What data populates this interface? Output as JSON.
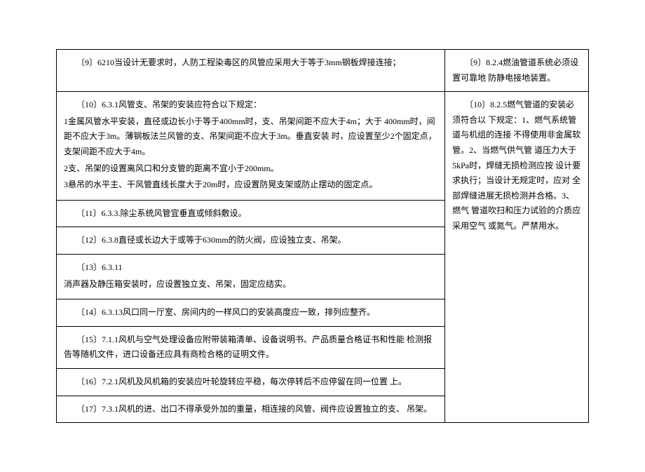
{
  "rows": {
    "r1_left": "〔9〕6210当设计无要求时，人防工程染毒区的风管应采用大于等于3mm钢板焊接连接；",
    "r1_right": "〔9〕8.2.4燃油管道系统必须设置可靠地 防静电接地装置。",
    "r2_left_p1": "〔10〕6.3.1风管支、吊架的安装应符合以下规定：",
    "r2_left_p2": " 1金属风管水平安装，直径或边长小于等于400mm时，支、吊架间距不应大于4m；大于 400mm时，间距不应大于3m。薄钢板法兰风管的支、吊架间距不应大于3m。垂直安装 时，应设置至少2个固定点，支架间距不应大于4m。",
    "r2_left_p3": "2支、吊架的设置离风口和分支管的距离不宜小于200mm。",
    "r2_left_p4": "3悬吊的水平主、干风管直线长度大于20m时，应设置防晃支架或防止摆动的固定点。",
    "r2_right": "〔10〕8.2.5燃气管道的安装必须符合以 下规定：1、燃气系统管道与机组的连接 不得使用非金属软管。2、当燃气供气管 道压力大于5kPa时，焊缝无损检测应按 设计要求执行；当设计无规定时，应对 全部焊缝进展无损检测并合格。3、燃气 管道吹扫和压力试验的介质应采用空气 或氮气。严禁用水。",
    "r3_left": "〔11〕6.3.3.除尘系统风管宜垂直或倾斜敷设。",
    "r4_left": "〔12〕6.3.8直径或长边大于或等于630mm的防火阀，应设独立支、吊架。",
    "r5_left_p1": "〔13〕6.3.11",
    "r5_left_p2": "消声器及静压箱安装时，应设置独立支、吊架，固定应结实。",
    "r6_left": "〔14〕6.3.13风口同一厅室、房间内的一样风口的安装高度应一致，排列应整齐。",
    "r7_left": "〔15〕7.1.1风机与空气处理设备应附带装箱清单、设备说明书、产品质量合格证书和性能 检测报告等随机文件，进口设备还应具有商检合格的证明文件。",
    "r8_left": "〔16〕7.2.1风机及风机箱的安装应叶轮旋转应平稳，每次停转后不应停留在同一位置 上。",
    "r9_left": "〔17〕7.3.1风机的进、出口不得承受外加的重量，相连接的风管、阀件应设置独立的支、 吊架。"
  }
}
